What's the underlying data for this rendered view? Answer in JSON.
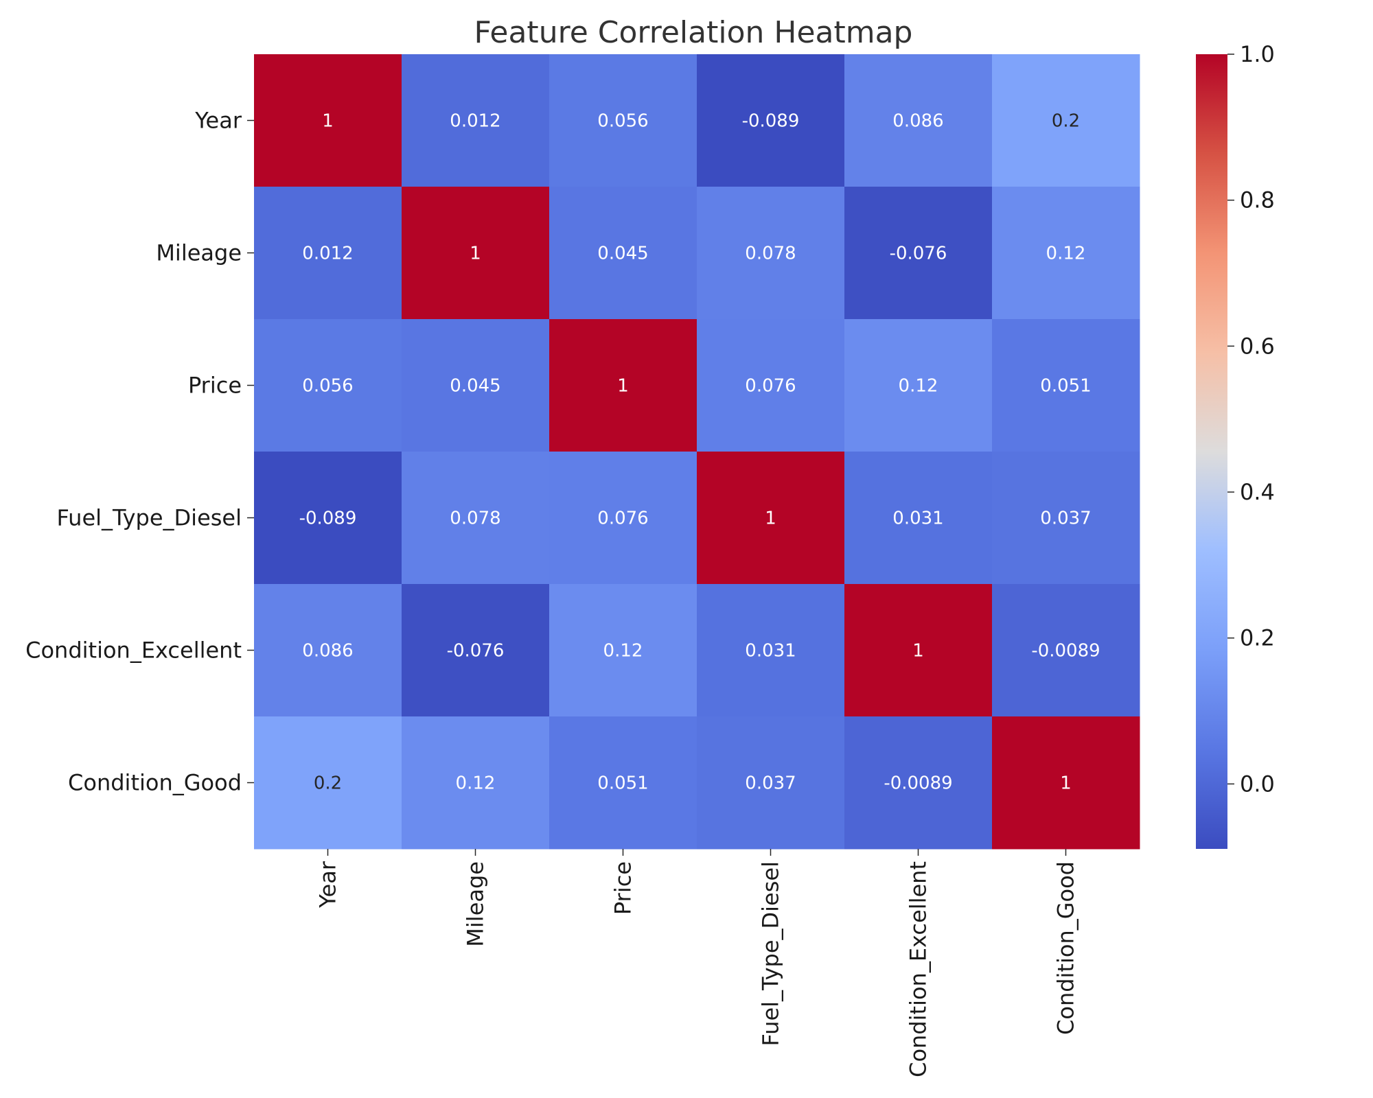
{
  "chart_data": {
    "type": "heatmap",
    "title": "Feature Correlation Heatmap",
    "xlabel": "",
    "ylabel": "",
    "row_labels": [
      "Year",
      "Mileage",
      "Price",
      "Fuel_Type_Diesel",
      "Condition_Excellent",
      "Condition_Good"
    ],
    "col_labels": [
      "Year",
      "Mileage",
      "Price",
      "Fuel_Type_Diesel",
      "Condition_Excellent",
      "Condition_Good"
    ],
    "values": [
      [
        1,
        0.012,
        0.056,
        -0.089,
        0.086,
        0.2
      ],
      [
        0.012,
        1,
        0.045,
        0.078,
        -0.076,
        0.12
      ],
      [
        0.056,
        0.045,
        1,
        0.076,
        0.12,
        0.051
      ],
      [
        -0.089,
        0.078,
        0.076,
        1,
        0.031,
        0.037
      ],
      [
        0.086,
        -0.076,
        0.12,
        0.031,
        1,
        -0.0089
      ],
      [
        0.2,
        0.12,
        0.051,
        0.037,
        -0.0089,
        1
      ]
    ],
    "cell_labels": [
      [
        "1",
        "0.012",
        "0.056",
        "-0.089",
        "0.086",
        "0.2"
      ],
      [
        "0.012",
        "1",
        "0.045",
        "0.078",
        "-0.076",
        "0.12"
      ],
      [
        "0.056",
        "0.045",
        "1",
        "0.076",
        "0.12",
        "0.051"
      ],
      [
        "-0.089",
        "0.078",
        "0.076",
        "1",
        "0.031",
        "0.037"
      ],
      [
        "0.086",
        "-0.076",
        "0.12",
        "0.031",
        "1",
        "-0.0089"
      ],
      [
        "0.2",
        "0.12",
        "0.051",
        "0.037",
        "-0.0089",
        "1"
      ]
    ],
    "colormap": "coolwarm",
    "vmin": -0.089,
    "vmax": 1.0,
    "colorbar_ticks": [
      {
        "value": 0.0,
        "label": "0.0"
      },
      {
        "value": 0.2,
        "label": "0.2"
      },
      {
        "value": 0.4,
        "label": "0.4"
      },
      {
        "value": 0.6,
        "label": "0.6"
      },
      {
        "value": 0.8,
        "label": "0.8"
      },
      {
        "value": 1.0,
        "label": "1.0"
      }
    ],
    "colormap_stops": [
      {
        "t": 0.0,
        "color": "#3b4cc0"
      },
      {
        "t": 0.125,
        "color": "#5977e3"
      },
      {
        "t": 0.25,
        "color": "#7b9ff9"
      },
      {
        "t": 0.375,
        "color": "#9ebeff"
      },
      {
        "t": 0.5,
        "color": "#dddcdc"
      },
      {
        "t": 0.625,
        "color": "#f6bfa6"
      },
      {
        "t": 0.75,
        "color": "#f39475"
      },
      {
        "t": 0.875,
        "color": "#d65244"
      },
      {
        "t": 1.0,
        "color": "#b40426"
      }
    ]
  }
}
